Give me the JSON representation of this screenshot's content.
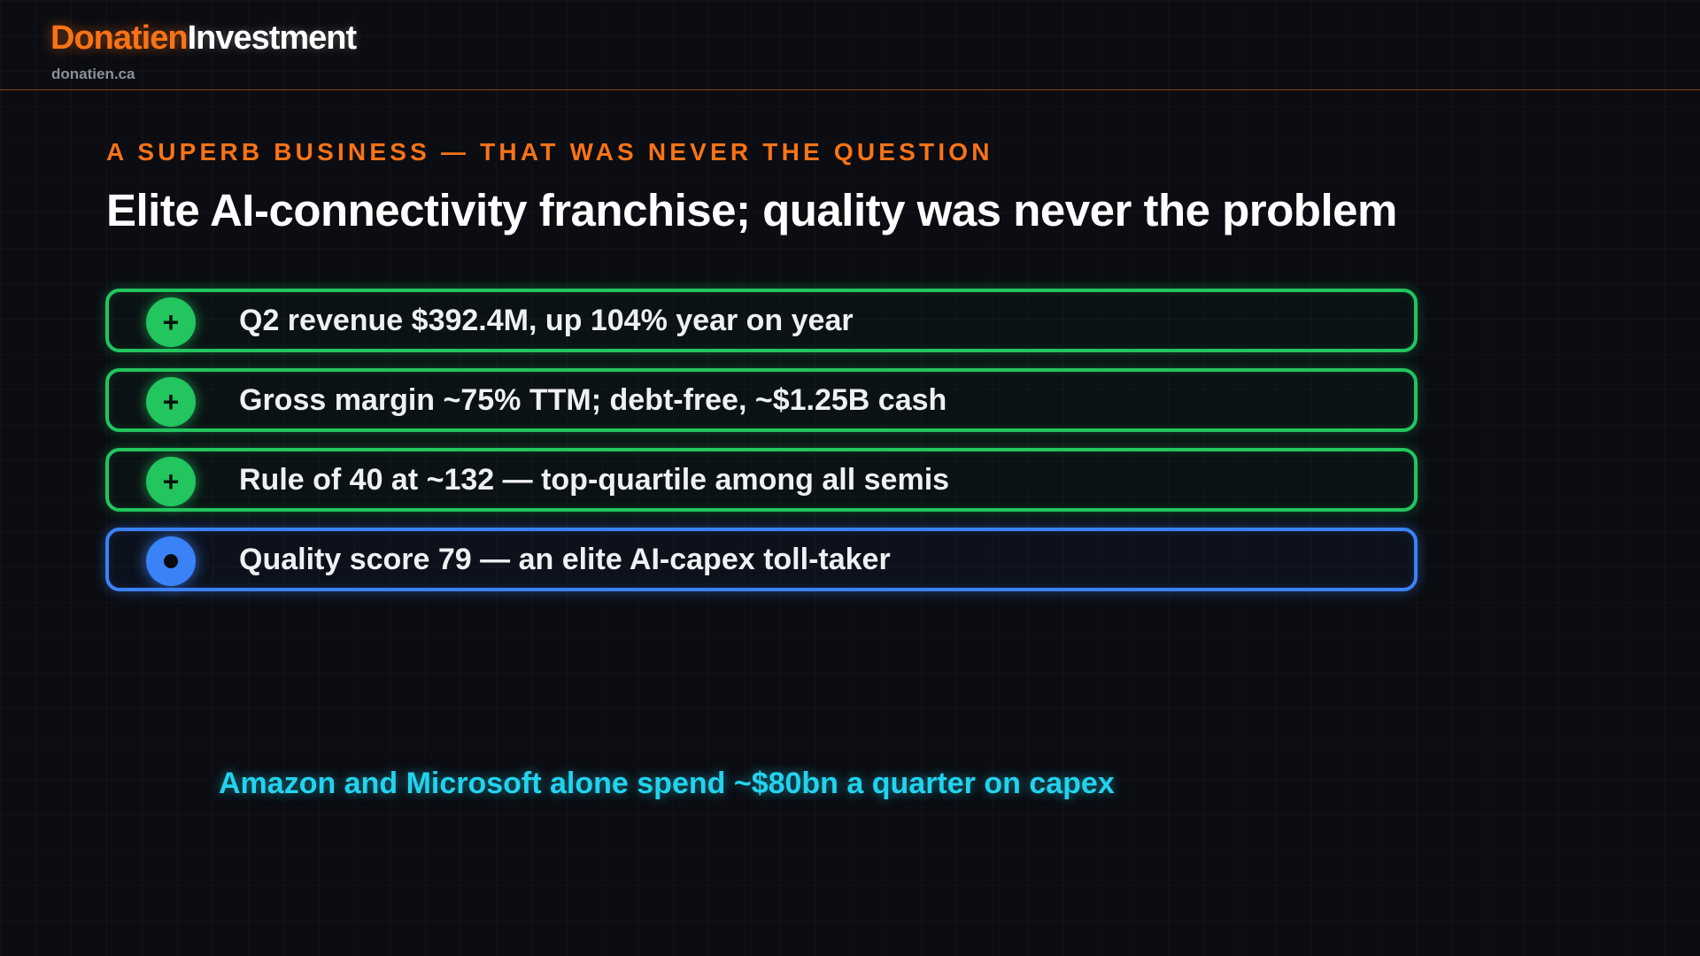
{
  "header": {
    "brand_primary": "Donatien",
    "brand_secondary": "Investment",
    "url": "donatien.ca"
  },
  "slide": {
    "eyebrow": "A SUPERB BUSINESS — THAT WAS NEVER THE QUESTION",
    "title": "Elite AI-connectivity franchise; quality was never the problem",
    "items": [
      {
        "icon": "plus-icon",
        "symbol": "+",
        "color": "#22c55e",
        "text": "Q2 revenue $392.4M, up 104% year on year"
      },
      {
        "icon": "plus-icon",
        "symbol": "+",
        "color": "#22c55e",
        "text": "Gross margin ~75% TTM; debt-free, ~$1.25B cash"
      },
      {
        "icon": "plus-icon",
        "symbol": "+",
        "color": "#22c55e",
        "text": "Rule of 40 at ~132 — top-quartile among all semis"
      },
      {
        "icon": "dot-icon",
        "symbol": "",
        "color": "#3b82f6",
        "text": "Quality score 79 — an elite AI-capex toll-taker"
      }
    ],
    "footnote": "Amazon and Microsoft alone spend ~$80bn a quarter on capex"
  },
  "colors": {
    "accent": "#f97316",
    "positive": "#22c55e",
    "neutral": "#3b82f6",
    "highlight": "#22d3ee",
    "background": "#0b0d12"
  }
}
